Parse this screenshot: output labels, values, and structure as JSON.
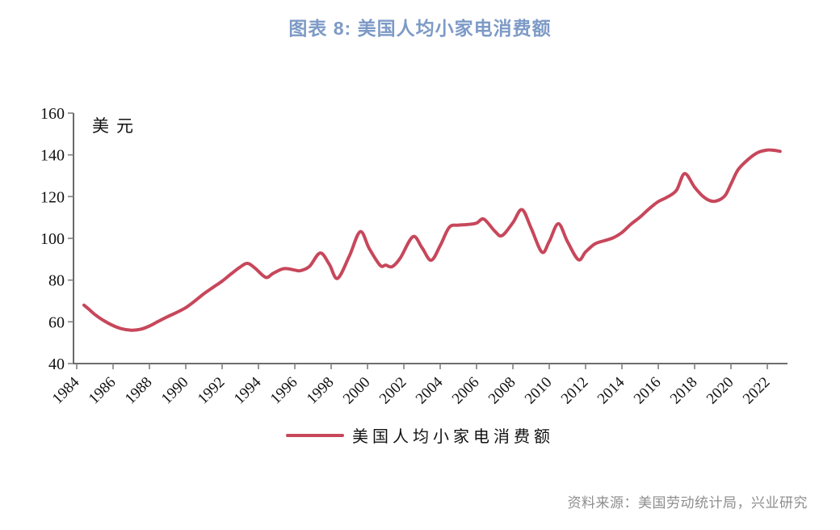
{
  "title": "图表  8: 美国人均小家电消费额",
  "source": "资料来源：美国劳动统计局，兴业研究",
  "colors": {
    "title": "#7d9ac6",
    "line": "#c7475b",
    "axis": "#595959",
    "tick": "#7f7f7f",
    "axis_text": "#111111",
    "source_text": "#8e8e8e"
  },
  "chart_data": {
    "type": "line",
    "title": "图表 8: 美国人均小家电消费额",
    "unit_label": "美元",
    "xlabel": "",
    "ylabel": "美元",
    "xlim": [
      1983.822,
      2023.111
    ],
    "ylim": [
      40,
      160
    ],
    "x_ticks": [
      1984,
      1986,
      1988,
      1990,
      1992,
      1994,
      1996,
      1998,
      2000,
      2002,
      2004,
      2006,
      2008,
      2010,
      2012,
      2014,
      2016,
      2018,
      2020,
      2022
    ],
    "y_ticks": [
      40,
      60,
      80,
      100,
      120,
      140,
      160
    ],
    "grid": false,
    "legend_position": "bottom",
    "series": [
      {
        "name": "美国人均小家电消费额",
        "color": "#c7475b",
        "points": [
          [
            1984.4,
            68.0
          ],
          [
            1984.7,
            65.8
          ],
          [
            1985.0,
            63.5
          ],
          [
            1985.5,
            60.5
          ],
          [
            1986.0,
            58.2
          ],
          [
            1986.5,
            56.6
          ],
          [
            1987.0,
            56.0
          ],
          [
            1987.5,
            56.4
          ],
          [
            1988.0,
            58.0
          ],
          [
            1988.5,
            60.3
          ],
          [
            1989.0,
            62.5
          ],
          [
            1989.5,
            64.5
          ],
          [
            1990.0,
            66.8
          ],
          [
            1990.5,
            70.0
          ],
          [
            1991.0,
            73.5
          ],
          [
            1991.5,
            76.5
          ],
          [
            1992.0,
            79.5
          ],
          [
            1992.5,
            83.0
          ],
          [
            1993.0,
            86.3
          ],
          [
            1993.4,
            88.0
          ],
          [
            1993.8,
            85.8
          ],
          [
            1994.4,
            81.3
          ],
          [
            1994.8,
            83.2
          ],
          [
            1995.4,
            85.5
          ],
          [
            1996.0,
            84.8
          ],
          [
            1996.3,
            84.5
          ],
          [
            1996.8,
            86.5
          ],
          [
            1997.4,
            93.0
          ],
          [
            1997.9,
            87.5
          ],
          [
            1998.35,
            80.8
          ],
          [
            1999.0,
            91.5
          ],
          [
            1999.6,
            103.2
          ],
          [
            2000.1,
            95.0
          ],
          [
            2000.7,
            87.0
          ],
          [
            2001.0,
            87.2
          ],
          [
            2001.35,
            86.4
          ],
          [
            2001.8,
            90.5
          ],
          [
            2002.5,
            100.8
          ],
          [
            2003.0,
            95.5
          ],
          [
            2003.5,
            89.5
          ],
          [
            2004.0,
            96.5
          ],
          [
            2004.5,
            105.3
          ],
          [
            2005.0,
            106.3
          ],
          [
            2005.5,
            106.6
          ],
          [
            2006.0,
            107.3
          ],
          [
            2006.4,
            109.2
          ],
          [
            2007.0,
            103.5
          ],
          [
            2007.4,
            101.3
          ],
          [
            2008.0,
            107.5
          ],
          [
            2008.5,
            113.8
          ],
          [
            2009.0,
            105.0
          ],
          [
            2009.6,
            93.4
          ],
          [
            2010.0,
            98.5
          ],
          [
            2010.5,
            107.0
          ],
          [
            2011.0,
            98.5
          ],
          [
            2011.6,
            89.8
          ],
          [
            2012.0,
            93.5
          ],
          [
            2012.5,
            97.3
          ],
          [
            2013.0,
            98.8
          ],
          [
            2013.5,
            100.2
          ],
          [
            2014.0,
            102.8
          ],
          [
            2014.5,
            106.8
          ],
          [
            2015.0,
            110.2
          ],
          [
            2015.5,
            114.2
          ],
          [
            2016.0,
            117.6
          ],
          [
            2016.5,
            119.8
          ],
          [
            2017.0,
            123.0
          ],
          [
            2017.45,
            131.0
          ],
          [
            2018.0,
            124.5
          ],
          [
            2018.5,
            119.8
          ],
          [
            2018.95,
            117.8
          ],
          [
            2019.35,
            118.4
          ],
          [
            2019.7,
            120.8
          ],
          [
            2020.0,
            126.0
          ],
          [
            2020.4,
            133.0
          ],
          [
            2021.0,
            138.2
          ],
          [
            2021.5,
            141.2
          ],
          [
            2022.0,
            142.3
          ],
          [
            2022.35,
            142.2
          ],
          [
            2022.7,
            141.7
          ]
        ]
      }
    ]
  }
}
